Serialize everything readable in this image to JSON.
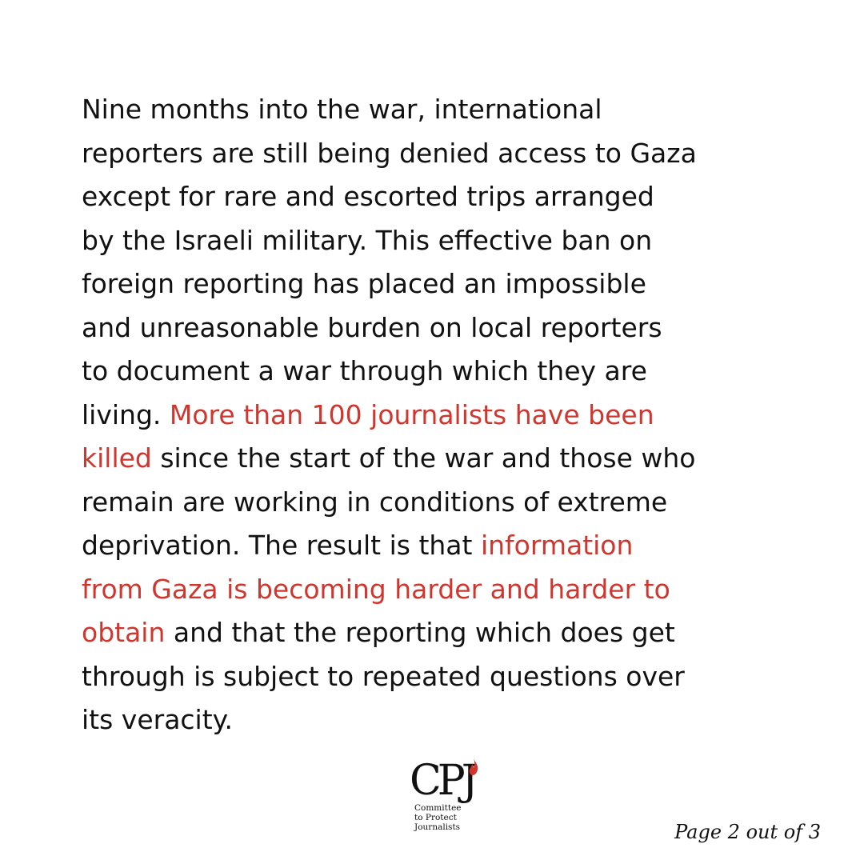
{
  "paragraph": {
    "l1": "Nine months into the war, international",
    "l2": "reporters are still being denied access to Gaza",
    "l3": "except for rare and escorted trips arranged",
    "l4": "by the Israeli military. This effective ban on",
    "l5": "foreign reporting has placed an impossible",
    "l6": "and unreasonable burden on local reporters",
    "l7": "to document a war through which they are",
    "l8a": "living. ",
    "l8b": "More than 100 journalists have been",
    "l9a": "killed",
    "l9b": " since the start of the war and those who",
    "l10": "remain are working in conditions of extreme",
    "l11a": "deprivation. The result is that ",
    "l11b": "information",
    "l12": "from Gaza is becoming harder and harder to",
    "l13a": "obtain",
    "l13b": " and that the reporting which does get",
    "l14": "through is subject to repeated questions over",
    "l15": "its veracity."
  },
  "logo": {
    "mark": "CPJ",
    "line1": "Committee",
    "line2": "to Protect",
    "line3": "Journalists"
  },
  "footer": {
    "page_label": "Page 2 out of 3"
  },
  "colors": {
    "highlight": "#d0362e",
    "text": "#111111",
    "background": "#ffffff"
  },
  "icons": {
    "logo_flame": "flame-icon"
  }
}
